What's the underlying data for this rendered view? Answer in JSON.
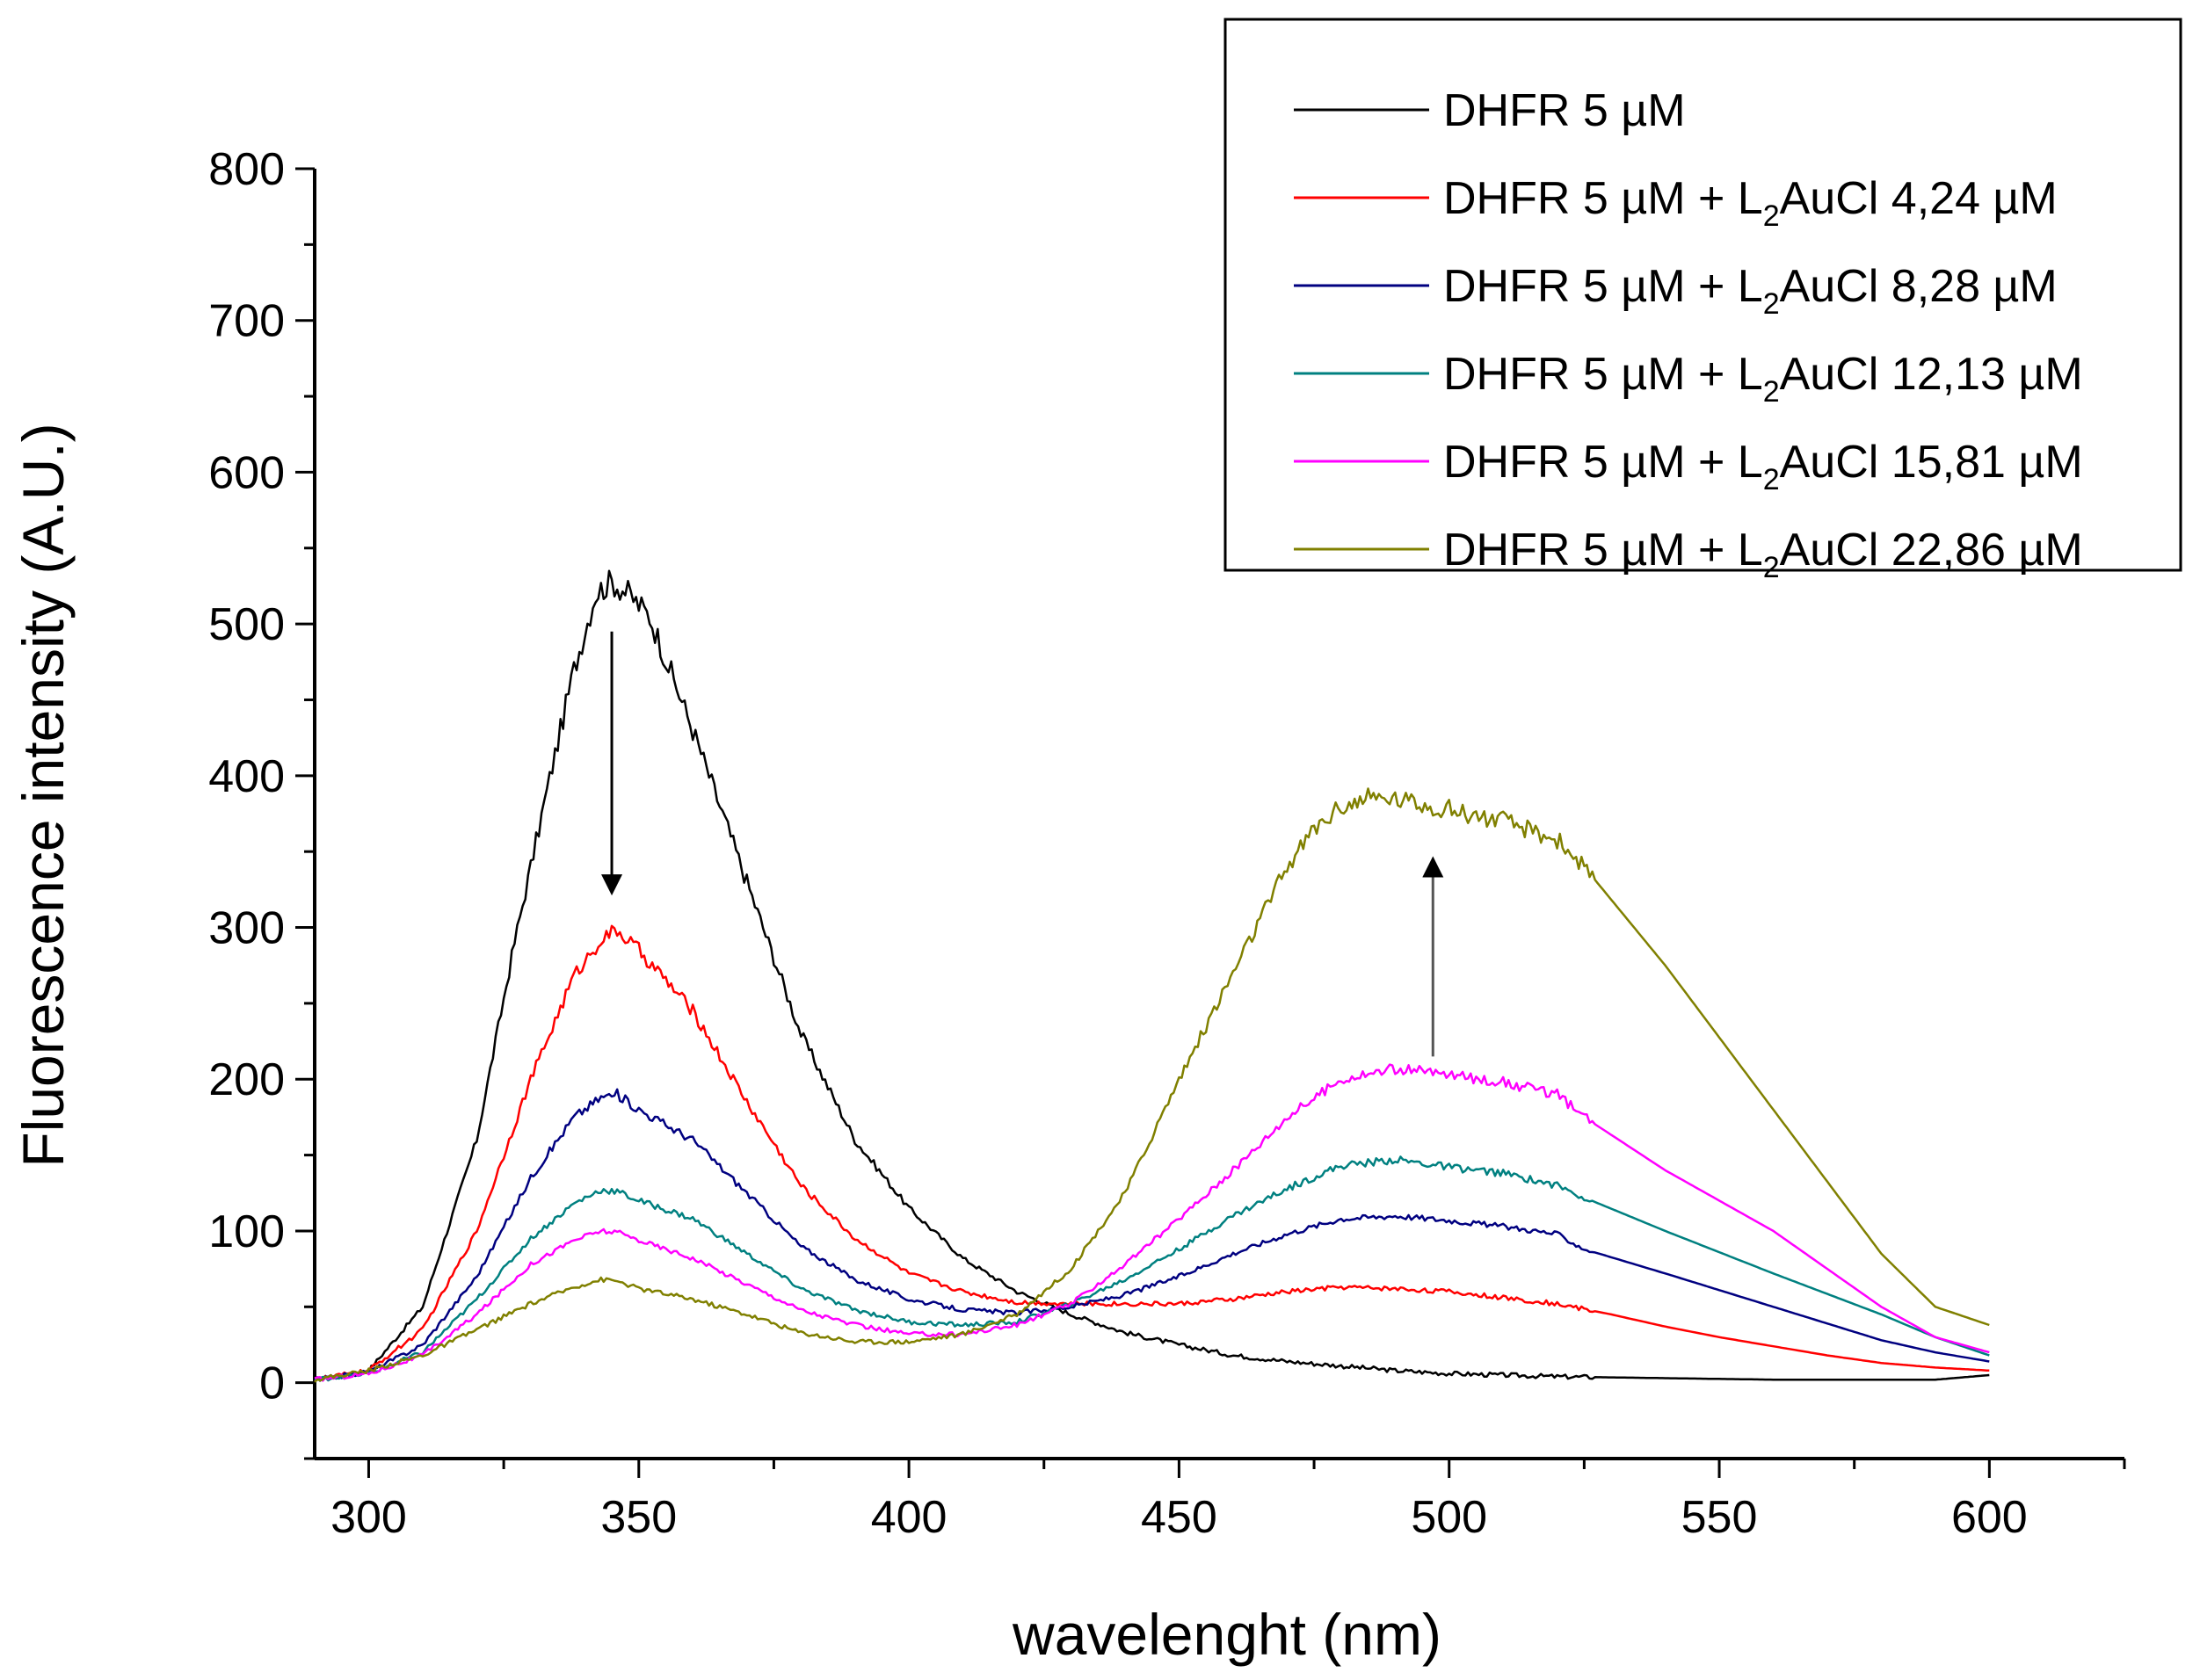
{
  "chart_data": {
    "type": "line",
    "title": "",
    "xlabel": "wavelenght (nm)",
    "ylabel": "Fluorescence intensity (A.U.)",
    "xlim": [
      290,
      625
    ],
    "ylim": [
      -50,
      800
    ],
    "xticks": [
      300,
      350,
      400,
      450,
      500,
      550,
      600
    ],
    "yticks": [
      0,
      100,
      200,
      300,
      400,
      500,
      600,
      700,
      800
    ],
    "x_minor_step": 25,
    "y_minor_step": 50,
    "legend_position": "top-right",
    "annotations": [
      {
        "type": "arrow-down",
        "x": 345,
        "y_from": 495,
        "y_to": 328
      },
      {
        "type": "arrow-up",
        "x": 497,
        "y_from": 215,
        "y_to": 340
      }
    ],
    "series": [
      {
        "name": "DHFR 5 µM",
        "legend_parts": [
          "DHFR 5 µM"
        ],
        "color": "#000000",
        "points": [
          [
            290,
            2
          ],
          [
            300,
            8
          ],
          [
            310,
            50
          ],
          [
            320,
            160
          ],
          [
            327,
            290
          ],
          [
            333,
            390
          ],
          [
            338,
            470
          ],
          [
            342,
            520
          ],
          [
            345,
            528
          ],
          [
            348,
            520
          ],
          [
            352,
            505
          ],
          [
            360,
            430
          ],
          [
            370,
            330
          ],
          [
            380,
            230
          ],
          [
            390,
            160
          ],
          [
            400,
            115
          ],
          [
            410,
            82
          ],
          [
            420,
            60
          ],
          [
            430,
            45
          ],
          [
            440,
            33
          ],
          [
            450,
            25
          ],
          [
            460,
            18
          ],
          [
            470,
            14
          ],
          [
            480,
            11
          ],
          [
            490,
            8
          ],
          [
            500,
            6
          ],
          [
            520,
            4
          ],
          [
            540,
            3
          ],
          [
            560,
            2
          ],
          [
            580,
            2
          ],
          [
            590,
            2
          ],
          [
            600,
            5
          ]
        ]
      },
      {
        "name": "DHFR 5 µM + L2AuCl 4,24 µM",
        "legend_parts": [
          "DHFR 5 µM + L",
          "2",
          "AuCl 4,24 µM"
        ],
        "color": "#ff0000",
        "points": [
          [
            290,
            2
          ],
          [
            300,
            8
          ],
          [
            310,
            35
          ],
          [
            320,
            100
          ],
          [
            330,
            200
          ],
          [
            338,
            268
          ],
          [
            343,
            292
          ],
          [
            346,
            298
          ],
          [
            350,
            285
          ],
          [
            360,
            245
          ],
          [
            370,
            185
          ],
          [
            380,
            130
          ],
          [
            390,
            95
          ],
          [
            400,
            72
          ],
          [
            410,
            60
          ],
          [
            420,
            53
          ],
          [
            430,
            52
          ],
          [
            440,
            52
          ],
          [
            450,
            52
          ],
          [
            460,
            55
          ],
          [
            470,
            60
          ],
          [
            480,
            63
          ],
          [
            490,
            62
          ],
          [
            500,
            60
          ],
          [
            510,
            56
          ],
          [
            520,
            52
          ],
          [
            530,
            45
          ],
          [
            540,
            37
          ],
          [
            550,
            30
          ],
          [
            560,
            24
          ],
          [
            570,
            18
          ],
          [
            580,
            13
          ],
          [
            590,
            10
          ],
          [
            600,
            8
          ]
        ]
      },
      {
        "name": "DHFR 5 µM + L2AuCl 8,28 µM",
        "legend_parts": [
          "DHFR 5 µM + L",
          "2",
          "AuCl  8,28 µM"
        ],
        "color": "#000080",
        "points": [
          [
            290,
            2
          ],
          [
            300,
            7
          ],
          [
            310,
            25
          ],
          [
            320,
            70
          ],
          [
            330,
            135
          ],
          [
            338,
            175
          ],
          [
            343,
            188
          ],
          [
            346,
            190
          ],
          [
            350,
            180
          ],
          [
            360,
            160
          ],
          [
            370,
            125
          ],
          [
            380,
            90
          ],
          [
            390,
            68
          ],
          [
            400,
            55
          ],
          [
            410,
            48
          ],
          [
            420,
            46
          ],
          [
            430,
            50
          ],
          [
            440,
            58
          ],
          [
            450,
            70
          ],
          [
            460,
            85
          ],
          [
            470,
            98
          ],
          [
            480,
            108
          ],
          [
            490,
            110
          ],
          [
            500,
            107
          ],
          [
            510,
            103
          ],
          [
            520,
            98
          ],
          [
            525,
            88
          ],
          [
            540,
            72
          ],
          [
            560,
            50
          ],
          [
            580,
            28
          ],
          [
            590,
            20
          ],
          [
            600,
            14
          ]
        ]
      },
      {
        "name": "DHFR 5 µM + L2AuCl 12,13 µM",
        "legend_parts": [
          "DHFR 5 µM + L",
          "2",
          "AuCl  12,13 µM"
        ],
        "color": "#008080",
        "points": [
          [
            290,
            2
          ],
          [
            300,
            6
          ],
          [
            310,
            20
          ],
          [
            320,
            55
          ],
          [
            330,
            95
          ],
          [
            338,
            118
          ],
          [
            343,
            127
          ],
          [
            346,
            126
          ],
          [
            350,
            120
          ],
          [
            360,
            108
          ],
          [
            370,
            85
          ],
          [
            380,
            62
          ],
          [
            390,
            48
          ],
          [
            400,
            40
          ],
          [
            410,
            38
          ],
          [
            420,
            40
          ],
          [
            430,
            52
          ],
          [
            440,
            68
          ],
          [
            450,
            88
          ],
          [
            460,
            110
          ],
          [
            470,
            128
          ],
          [
            480,
            143
          ],
          [
            490,
            147
          ],
          [
            500,
            142
          ],
          [
            510,
            138
          ],
          [
            520,
            130
          ],
          [
            525,
            122
          ],
          [
            540,
            100
          ],
          [
            560,
            72
          ],
          [
            580,
            45
          ],
          [
            590,
            30
          ],
          [
            600,
            18
          ]
        ]
      },
      {
        "name": "DHFR 5 µM + L2AuCl 15,81 µM",
        "legend_parts": [
          "DHFR 5 µM + L",
          "2",
          "AuCl  15,81 µM"
        ],
        "color": "#ff00ff",
        "points": [
          [
            290,
            2
          ],
          [
            300,
            6
          ],
          [
            310,
            18
          ],
          [
            320,
            45
          ],
          [
            330,
            78
          ],
          [
            338,
            94
          ],
          [
            343,
            100
          ],
          [
            346,
            99
          ],
          [
            350,
            94
          ],
          [
            360,
            82
          ],
          [
            370,
            65
          ],
          [
            380,
            48
          ],
          [
            390,
            38
          ],
          [
            400,
            32
          ],
          [
            410,
            32
          ],
          [
            420,
            38
          ],
          [
            430,
            52
          ],
          [
            440,
            78
          ],
          [
            450,
            108
          ],
          [
            460,
            140
          ],
          [
            470,
            175
          ],
          [
            480,
            200
          ],
          [
            490,
            207
          ],
          [
            500,
            203
          ],
          [
            510,
            198
          ],
          [
            520,
            190
          ],
          [
            525,
            175
          ],
          [
            540,
            140
          ],
          [
            560,
            100
          ],
          [
            580,
            50
          ],
          [
            590,
            30
          ],
          [
            600,
            20
          ]
        ]
      },
      {
        "name": "DHFR 5 µM + L2AuCl 22,86 µM",
        "legend_parts": [
          "DHFR 5 µM + L",
          "2",
          "AuCl  22,86 µM"
        ],
        "color": "#808000",
        "points": [
          [
            290,
            2
          ],
          [
            300,
            8
          ],
          [
            310,
            18
          ],
          [
            320,
            35
          ],
          [
            330,
            52
          ],
          [
            338,
            63
          ],
          [
            343,
            68
          ],
          [
            346,
            67
          ],
          [
            350,
            62
          ],
          [
            360,
            55
          ],
          [
            370,
            45
          ],
          [
            380,
            33
          ],
          [
            390,
            27
          ],
          [
            400,
            27
          ],
          [
            410,
            32
          ],
          [
            420,
            45
          ],
          [
            430,
            75
          ],
          [
            440,
            125
          ],
          [
            450,
            200
          ],
          [
            460,
            270
          ],
          [
            470,
            340
          ],
          [
            475,
            365
          ],
          [
            480,
            380
          ],
          [
            485,
            385
          ],
          [
            490,
            385
          ],
          [
            500,
            378
          ],
          [
            510,
            370
          ],
          [
            520,
            358
          ],
          [
            525,
            340
          ],
          [
            540,
            275
          ],
          [
            560,
            180
          ],
          [
            580,
            85
          ],
          [
            590,
            50
          ],
          [
            600,
            38
          ]
        ]
      }
    ]
  }
}
